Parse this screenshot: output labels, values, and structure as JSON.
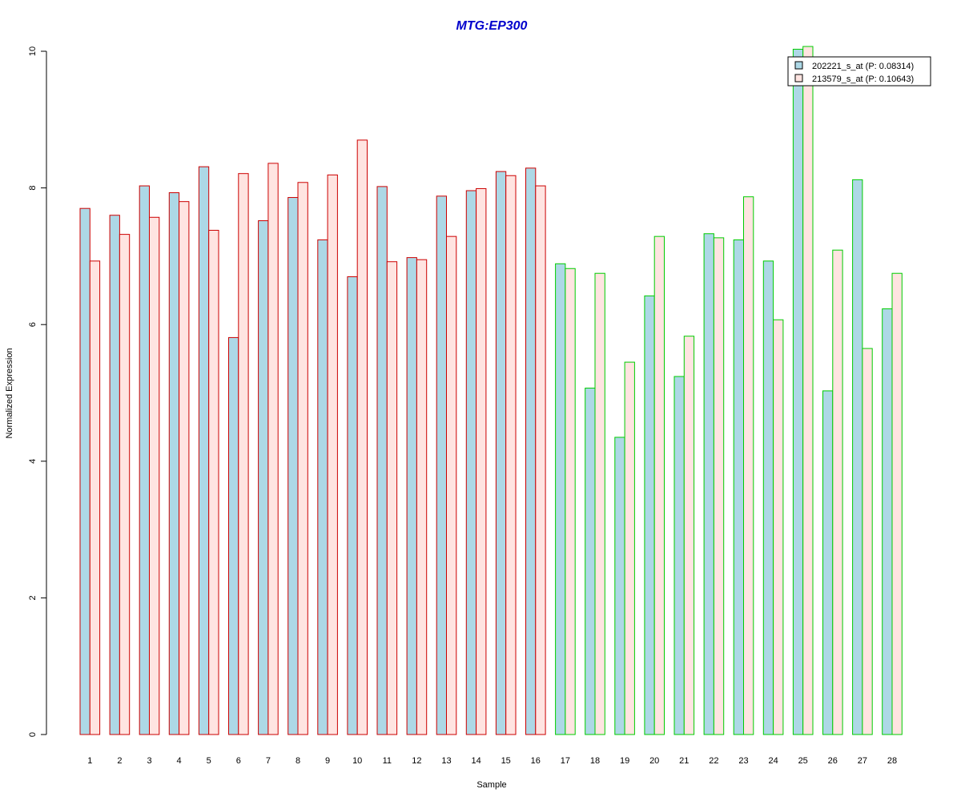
{
  "chart_data": {
    "type": "bar",
    "title": "MTG:EP300",
    "title_color": "#0000cc",
    "xlabel": "Sample",
    "ylabel": "Normalized Expression",
    "ylim": [
      0,
      10
    ],
    "yticks": [
      "0",
      "2",
      "4",
      "6",
      "8",
      "10"
    ],
    "grid": false,
    "legend_position": "top-right",
    "categories": [
      "1",
      "2",
      "3",
      "4",
      "5",
      "6",
      "7",
      "8",
      "9",
      "10",
      "11",
      "12",
      "13",
      "14",
      "15",
      "16",
      "17",
      "18",
      "19",
      "20",
      "21",
      "22",
      "23",
      "24",
      "25",
      "26",
      "27",
      "28"
    ],
    "group_border_colors": [
      "#cc0000",
      "#cc0000",
      "#cc0000",
      "#cc0000",
      "#cc0000",
      "#cc0000",
      "#cc0000",
      "#cc0000",
      "#cc0000",
      "#cc0000",
      "#cc0000",
      "#cc0000",
      "#cc0000",
      "#cc0000",
      "#cc0000",
      "#cc0000",
      "#00cc00",
      "#00cc00",
      "#00cc00",
      "#00cc00",
      "#00cc00",
      "#00cc00",
      "#00cc00",
      "#00cc00",
      "#00cc00",
      "#00cc00",
      "#00cc00",
      "#00cc00"
    ],
    "series": [
      {
        "name": "202221_s_at (P: 0.08314)",
        "fill": "#add8e6",
        "values": [
          7.7,
          7.6,
          8.03,
          7.93,
          8.31,
          5.81,
          7.52,
          7.86,
          7.24,
          6.7,
          8.02,
          6.98,
          7.88,
          7.96,
          8.24,
          8.29,
          6.89,
          5.07,
          4.35,
          6.42,
          5.24,
          7.33,
          7.24,
          6.93,
          10.03,
          5.03,
          8.12,
          6.23
        ]
      },
      {
        "name": "213579_s_at (P: 0.10643)",
        "fill": "#ffe4e1",
        "values": [
          6.93,
          7.32,
          7.57,
          7.8,
          7.38,
          8.21,
          8.36,
          8.08,
          8.19,
          8.7,
          6.92,
          6.95,
          7.29,
          7.99,
          8.18,
          8.03,
          6.82,
          6.75,
          5.45,
          7.29,
          5.83,
          7.27,
          7.87,
          6.07,
          10.07,
          7.09,
          5.65,
          6.75
        ]
      }
    ]
  }
}
